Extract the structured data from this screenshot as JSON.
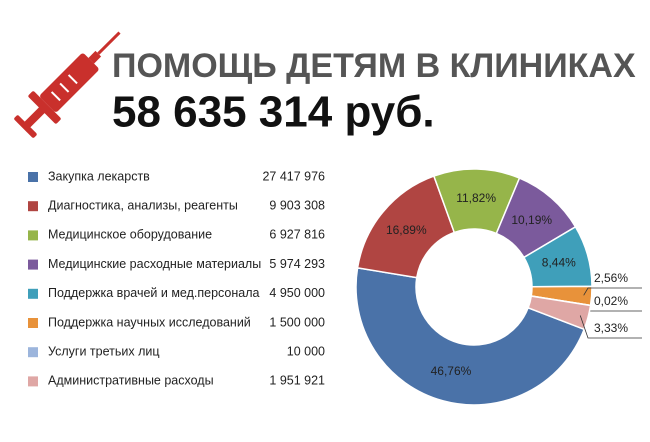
{
  "chart_data": {
    "type": "donut",
    "title": "ПОМОЩЬ ДЕТЯМ В КЛИНИКАХ",
    "subtitle": "58 635 314 руб.",
    "categories": [
      "Закупка лекарств",
      "Диагностика, анализы, реагенты",
      "Медицинское оборудование",
      "Медицинские расходные материалы",
      "Поддержка врачей и мед.персонала",
      "Поддержка научных исследований",
      "Услуги третьих лиц",
      "Административные расходы"
    ],
    "amounts": [
      "27 417 976",
      "9 903 308",
      "6 927 816",
      "5 974 293",
      "4 950 000",
      "1 500 000",
      "10 000",
      "1 951 921"
    ],
    "values": [
      46.76,
      16.89,
      11.82,
      10.19,
      8.44,
      2.56,
      0.02,
      3.33
    ],
    "value_labels": [
      "46,76%",
      "16,89%",
      "11,82%",
      "10,19%",
      "8,44%",
      "2,56%",
      "0,02%",
      "3,33%"
    ],
    "colors": [
      "#4a72a8",
      "#b04542",
      "#96b54a",
      "#7b5a9c",
      "#3f9fba",
      "#e8923a",
      "#9cb5dc",
      "#dfa7a5"
    ]
  }
}
